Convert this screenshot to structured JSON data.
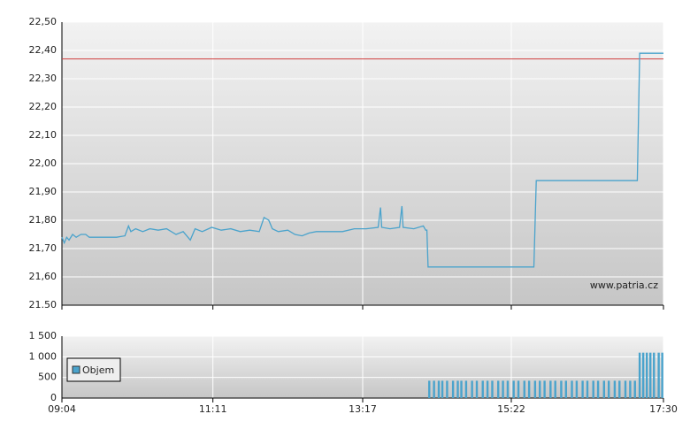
{
  "chart_data": [
    {
      "type": "line",
      "watermark": "www.patria.cz",
      "x": [
        "09:04",
        "09:06",
        "09:08",
        "09:10",
        "09:13",
        "09:16",
        "09:20",
        "09:24",
        "09:27",
        "09:33",
        "09:40",
        "09:50",
        "09:57",
        "10:00",
        "10:02",
        "10:06",
        "10:12",
        "10:18",
        "10:25",
        "10:32",
        "10:40",
        "10:46",
        "10:52",
        "10:56",
        "11:02",
        "11:10",
        "11:18",
        "11:26",
        "11:34",
        "11:42",
        "11:50",
        "11:54",
        "11:58",
        "12:01",
        "12:06",
        "12:14",
        "12:20",
        "12:26",
        "12:32",
        "12:38",
        "12:50",
        "13:00",
        "13:10",
        "13:20",
        "13:30",
        "13:32",
        "13:33",
        "13:40",
        "13:48",
        "13:50",
        "13:51",
        "14:00",
        "14:08",
        "14:10",
        "14:11",
        "14:12",
        "15:41",
        "15:43",
        "17:08",
        "17:10",
        "17:30"
      ],
      "series": [
        {
          "color": "#4aa3cc",
          "values": [
            21.74,
            21.72,
            21.74,
            21.73,
            21.75,
            21.74,
            21.75,
            21.75,
            21.74,
            21.74,
            21.74,
            21.74,
            21.745,
            21.78,
            21.76,
            21.77,
            21.76,
            21.77,
            21.765,
            21.77,
            21.75,
            21.76,
            21.73,
            21.77,
            21.76,
            21.775,
            21.765,
            21.77,
            21.76,
            21.765,
            21.76,
            21.81,
            21.8,
            21.77,
            21.76,
            21.765,
            21.75,
            21.745,
            21.755,
            21.76,
            21.76,
            21.76,
            21.77,
            21.77,
            21.775,
            21.845,
            21.775,
            21.77,
            21.775,
            21.85,
            21.775,
            21.77,
            21.78,
            21.765,
            21.765,
            21.635,
            21.635,
            21.94,
            21.94,
            22.39,
            22.39
          ]
        }
      ],
      "reference_line": {
        "value": 22.37,
        "color": "#d04040"
      },
      "ylim": [
        21.5,
        22.5
      ],
      "yticks": [
        {
          "value": 21.5,
          "label": "21.50"
        },
        {
          "value": 21.6,
          "label": "21,60"
        },
        {
          "value": 21.7,
          "label": "21,70"
        },
        {
          "value": 21.8,
          "label": "21,80"
        },
        {
          "value": 21.9,
          "label": "21,90"
        },
        {
          "value": 22.0,
          "label": "22,00"
        },
        {
          "value": 22.1,
          "label": "22,10"
        },
        {
          "value": 22.2,
          "label": "22,20"
        },
        {
          "value": 22.3,
          "label": "22,30"
        },
        {
          "value": 22.4,
          "label": "22,40"
        },
        {
          "value": 22.5,
          "label": "22,50"
        }
      ],
      "xlim": [
        "09:04",
        "17:30"
      ],
      "xticks": [
        "09:04",
        "11:11",
        "13:17",
        "15:22",
        "17:30"
      ],
      "grid": true
    },
    {
      "type": "bar",
      "legend_position": "left",
      "x": [
        "14:13",
        "14:17",
        "14:21",
        "14:24",
        "14:28",
        "14:33",
        "14:37",
        "14:40",
        "14:44",
        "14:49",
        "14:53",
        "14:58",
        "15:02",
        "15:06",
        "15:11",
        "15:15",
        "15:19",
        "15:24",
        "15:28",
        "15:33",
        "15:37",
        "15:42",
        "15:46",
        "15:50",
        "15:55",
        "15:59",
        "16:04",
        "16:08",
        "16:13",
        "16:17",
        "16:22",
        "16:26",
        "16:31",
        "16:35",
        "16:40",
        "16:44",
        "16:49",
        "16:53",
        "16:58",
        "17:02",
        "17:06",
        "17:10",
        "17:13",
        "17:16",
        "17:19",
        "17:22",
        "17:26",
        "17:29"
      ],
      "series": [
        {
          "name": "Objem",
          "color": "#4aa3cc",
          "values": [
            420,
            420,
            420,
            420,
            420,
            420,
            420,
            420,
            420,
            420,
            420,
            420,
            420,
            420,
            420,
            420,
            420,
            420,
            420,
            420,
            420,
            420,
            420,
            420,
            420,
            420,
            420,
            420,
            420,
            420,
            420,
            420,
            420,
            420,
            420,
            420,
            420,
            420,
            420,
            420,
            420,
            1100,
            1100,
            1100,
            1100,
            1100,
            1100,
            1100
          ]
        }
      ],
      "ylim": [
        0,
        1500
      ],
      "yticks": [
        0,
        500,
        {
          "value": 1000,
          "label": "1 000"
        },
        {
          "value": 1500,
          "label": "1 500"
        }
      ],
      "xlim": [
        "09:04",
        "17:30"
      ],
      "xticks": [
        "09:04",
        "11:11",
        "13:17",
        "15:22",
        "17:30"
      ],
      "grid": true
    }
  ]
}
